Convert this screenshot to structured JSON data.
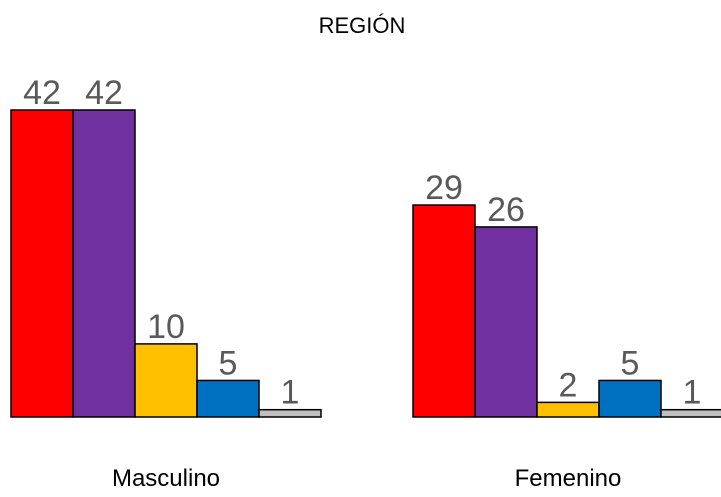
{
  "chart_data": {
    "type": "bar",
    "title": "REGIÓN",
    "xlabel": "",
    "ylabel": "",
    "categories": [
      "Masculino",
      "Femenino"
    ],
    "series": [
      {
        "values": [
          42,
          29
        ],
        "color": "#ff0000"
      },
      {
        "values": [
          42,
          26
        ],
        "color": "#7030a0"
      },
      {
        "values": [
          10,
          2
        ],
        "color": "#ffc000"
      },
      {
        "values": [
          5,
          5
        ],
        "color": "#0070c0"
      },
      {
        "values": [
          1,
          1
        ],
        "color": "#bfbfbf"
      }
    ],
    "ylim": [
      0,
      42
    ],
    "grid": false,
    "legend": "none",
    "data_labels": true
  }
}
